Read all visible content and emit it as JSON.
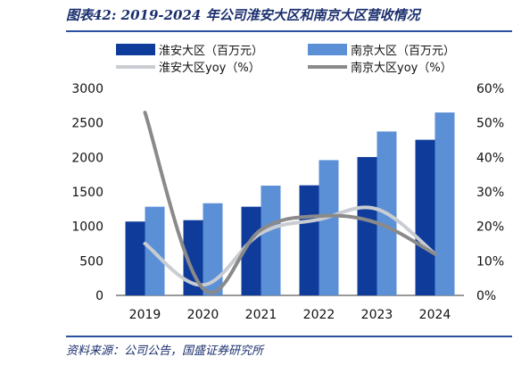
{
  "figure": {
    "title": "图表42:  2019-2024 年公司淮安大区和南京大区营收情况",
    "source": "资料来源：公司公告，国盛证券研究所"
  },
  "chart_data": {
    "type": "bar",
    "categories": [
      "2019",
      "2020",
      "2021",
      "2022",
      "2023",
      "2024"
    ],
    "series": [
      {
        "name": "淮安大区（百万元）",
        "kind": "bar",
        "axis": "left",
        "color": "#0f3c9a",
        "values": [
          1070,
          1090,
          1285,
          1595,
          2005,
          2255
        ]
      },
      {
        "name": "南京大区（百万元）",
        "kind": "bar",
        "axis": "left",
        "color": "#5b8fd6",
        "values": [
          1285,
          1335,
          1590,
          1960,
          2375,
          2650
        ]
      },
      {
        "name": "淮安大区yoy（%）",
        "kind": "line",
        "axis": "right",
        "color": "#c9cdd2",
        "values": [
          15,
          3,
          18,
          22,
          25,
          12
        ]
      },
      {
        "name": "南京大区yoy（%）",
        "kind": "line",
        "axis": "right",
        "color": "#8a8a8a",
        "values": [
          53,
          2,
          19,
          23,
          21,
          12
        ]
      }
    ],
    "yleft": {
      "min": 0,
      "max": 3000,
      "step": 500,
      "ticks": [
        "0",
        "500",
        "1000",
        "1500",
        "2000",
        "2500",
        "3000"
      ]
    },
    "yright": {
      "min": 0,
      "max": 60,
      "step": 10,
      "ticks": [
        "0%",
        "10%",
        "20%",
        "30%",
        "40%",
        "50%",
        "60%"
      ]
    },
    "xlabel": "",
    "ylabel": "",
    "grid": false,
    "legend": "top"
  }
}
